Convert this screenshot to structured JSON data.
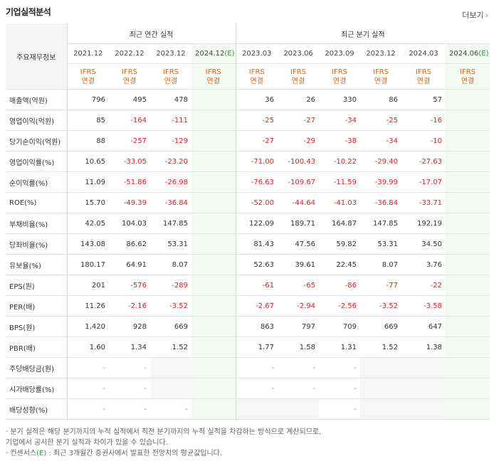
{
  "header": {
    "title": "기업실적분석",
    "more_label": "더보기",
    "more_chevron": "›"
  },
  "table": {
    "item_header": "주요재무정보",
    "sections": {
      "annual": "최근 연간 실적",
      "quarterly": "최근 분기 실적"
    },
    "annual_periods": [
      "2021.12",
      "2022.12",
      "2023.12",
      "2024.12"
    ],
    "quarterly_periods": [
      "2023.03",
      "2023.06",
      "2023.09",
      "2023.12",
      "2024.03",
      "2024.06"
    ],
    "estimate_suffix": "(E)",
    "ifrs_top": "IFRS",
    "ifrs_bottom": "연결",
    "rows": [
      {
        "label": "매출액(억원)",
        "values": [
          "796",
          "495",
          "478",
          "",
          "36",
          "26",
          "330",
          "86",
          "57",
          ""
        ]
      },
      {
        "label": "영업이익(억원)",
        "values": [
          "85",
          "-164",
          "-111",
          "",
          "-25",
          "-27",
          "-34",
          "-25",
          "-16",
          ""
        ]
      },
      {
        "label": "당기순이익(억원)",
        "values": [
          "88",
          "-257",
          "-129",
          "",
          "-27",
          "-29",
          "-38",
          "-34",
          "-10",
          ""
        ]
      },
      {
        "label": "영업이익률(%)",
        "values": [
          "10.65",
          "-33.05",
          "-23.20",
          "",
          "-71.00",
          "-100.43",
          "-10.22",
          "-29.40",
          "-27.63",
          ""
        ]
      },
      {
        "label": "순이익률(%)",
        "values": [
          "11.09",
          "-51.86",
          "-26.98",
          "",
          "-76.63",
          "-109.67",
          "-11.59",
          "-39.99",
          "-17.07",
          ""
        ]
      },
      {
        "label": "ROE(%)",
        "values": [
          "15.70",
          "-49.39",
          "-36.84",
          "",
          "-52.00",
          "-44.64",
          "-41.03",
          "-36.84",
          "-33.71",
          ""
        ]
      },
      {
        "label": "부채비율(%)",
        "values": [
          "42.05",
          "104.03",
          "147.85",
          "",
          "122.09",
          "189.71",
          "164.87",
          "147.85",
          "192.19",
          ""
        ]
      },
      {
        "label": "당좌비율(%)",
        "values": [
          "143.08",
          "86.62",
          "53.31",
          "",
          "81.43",
          "47.56",
          "59.82",
          "53.31",
          "34.50",
          ""
        ]
      },
      {
        "label": "유보율(%)",
        "values": [
          "180.17",
          "64.91",
          "8.07",
          "",
          "52.63",
          "39.61",
          "22.45",
          "8.07",
          "3.76",
          ""
        ]
      },
      {
        "label": "EPS(원)",
        "values": [
          "201",
          "-576",
          "-289",
          "",
          "-61",
          "-65",
          "-86",
          "-77",
          "-22",
          ""
        ]
      },
      {
        "label": "PER(배)",
        "values": [
          "11.26",
          "-2.16",
          "-3.52",
          "",
          "-2.67",
          "-2.94",
          "-2.56",
          "-3.52",
          "-3.58",
          ""
        ]
      },
      {
        "label": "BPS(원)",
        "values": [
          "1,420",
          "928",
          "669",
          "",
          "863",
          "797",
          "709",
          "669",
          "647",
          ""
        ]
      },
      {
        "label": "PBR(배)",
        "values": [
          "1.60",
          "1.34",
          "1.52",
          "",
          "1.77",
          "1.58",
          "1.31",
          "1.52",
          "1.38",
          ""
        ]
      },
      {
        "label": "주당배당금(원)",
        "values": [
          "-",
          "-",
          "",
          "",
          "-",
          "-",
          "-",
          "",
          "",
          ""
        ]
      },
      {
        "label": "시가배당률(%)",
        "values": [
          "-",
          "-",
          "",
          "",
          "-",
          "-",
          "-",
          "",
          "",
          ""
        ]
      },
      {
        "label": "배당성향(%)",
        "values": [
          "-",
          "-",
          "-",
          "",
          "",
          "",
          "-",
          "",
          "",
          ""
        ]
      }
    ]
  },
  "notes": {
    "line1": "· 분기 실적은 해당 분기까지의 누적 실적에서 직전 분기까지의 누적 실적을 차감하는 방식으로 계산되므로,",
    "line2": "  기업에서 공시한 분기 실적과 차이가 있을 수 있습니다.",
    "line3_pre": "· 컨센서스",
    "line3_e": "(E)",
    "line3_post": " : 최근 3개월간 증권사에서 발표한 전망치의 평균값입니다."
  },
  "colors": {
    "negative": "#e02020",
    "ifrs": "#e8630a",
    "estimate_bg": "#f3faf2",
    "estimate_e": "#2f9a2f"
  }
}
